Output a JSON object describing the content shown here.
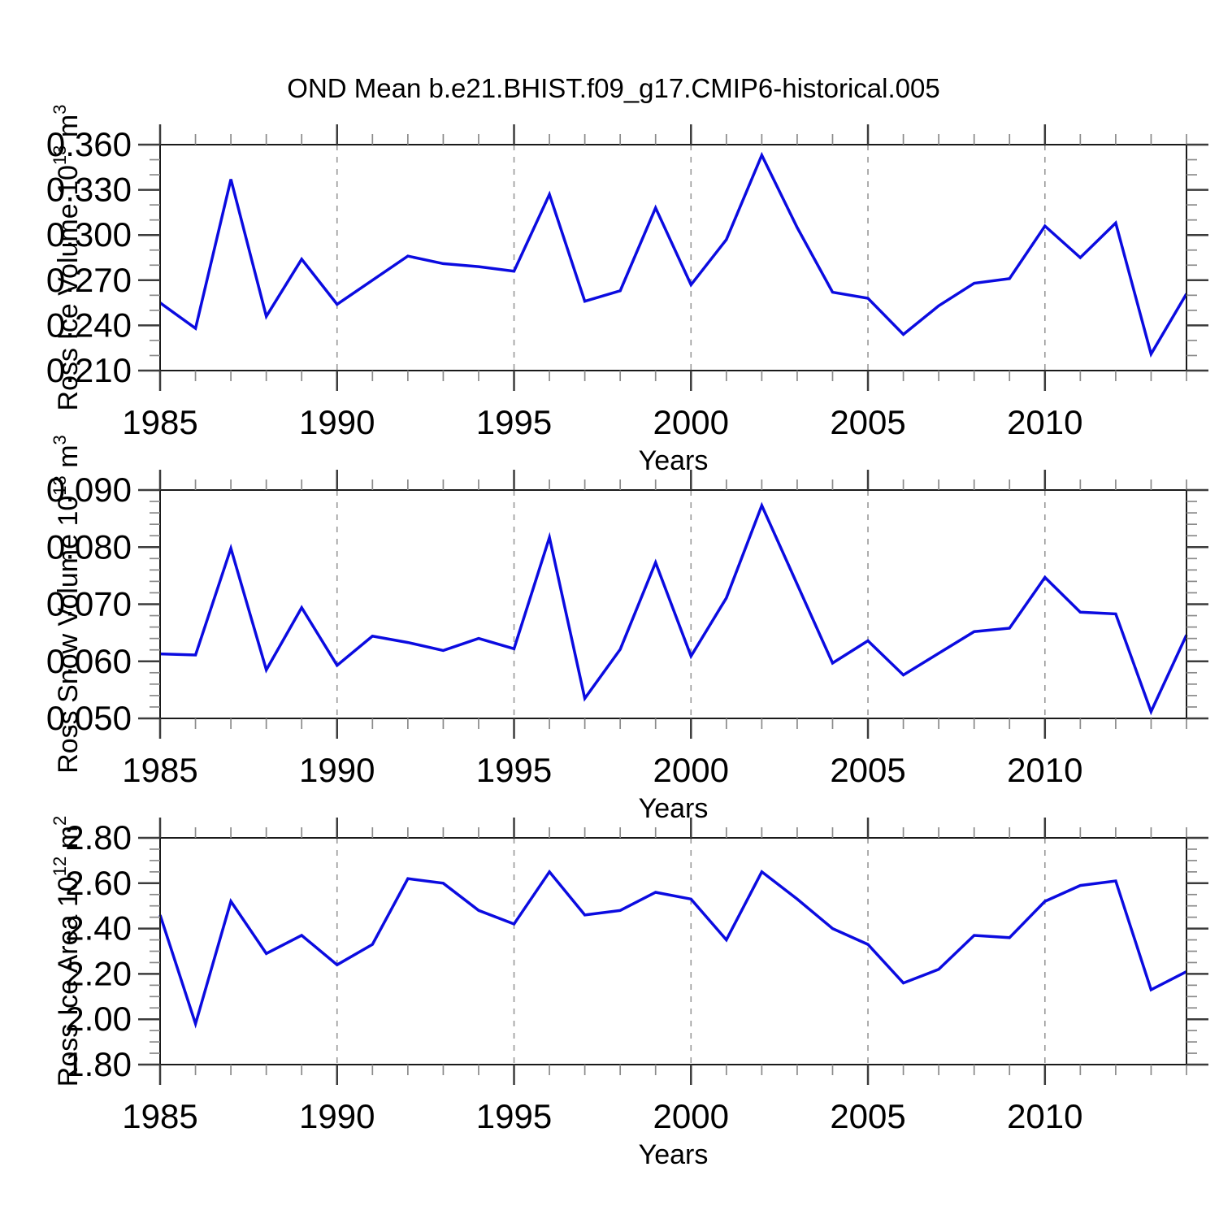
{
  "title": "OND Mean b.e21.BHIST.f09_g17.CMIP6-historical.005",
  "line_color": "#0b0be0",
  "years": [
    1985,
    1986,
    1987,
    1988,
    1989,
    1990,
    1991,
    1992,
    1993,
    1994,
    1995,
    1996,
    1997,
    1998,
    1999,
    2000,
    2001,
    2002,
    2003,
    2004,
    2005,
    2006,
    2007,
    2008,
    2009,
    2010,
    2011,
    2012,
    2013,
    2014
  ],
  "x_major_ticks": [
    1985,
    1990,
    1995,
    2000,
    2005,
    2010
  ],
  "grid_years": [
    1990,
    1995,
    2000,
    2005,
    2010
  ],
  "chart_data": [
    {
      "type": "line",
      "name": "ross-ice-volume",
      "ylabel": "Ross Ice Volume 10^13^ m^3^",
      "xlabel": "Years",
      "xlim": [
        1985,
        2014
      ],
      "ylim": [
        0.21,
        0.36
      ],
      "ytick_values": [
        0.21,
        0.24,
        0.27,
        0.3,
        0.33,
        0.36
      ],
      "ytick_labels": [
        "0.210",
        "0.240",
        "0.270",
        "0.300",
        "0.330",
        "0.360"
      ],
      "y_minor_step": 0.01,
      "grid": "vertical-dashed",
      "values": [
        0.255,
        0.238,
        0.337,
        0.246,
        0.284,
        0.254,
        0.27,
        0.286,
        0.281,
        0.279,
        0.276,
        0.327,
        0.256,
        0.263,
        0.318,
        0.267,
        0.297,
        0.353,
        0.305,
        0.262,
        0.258,
        0.234,
        0.253,
        0.268,
        0.271,
        0.306,
        0.285,
        0.308,
        0.221,
        0.261
      ]
    },
    {
      "type": "line",
      "name": "ross-snow-volume",
      "ylabel": "Ross Snow Volume 10^13^ m^3^",
      "xlabel": "Years",
      "xlim": [
        1985,
        2014
      ],
      "ylim": [
        0.05,
        0.09
      ],
      "ytick_values": [
        0.05,
        0.06,
        0.07,
        0.08,
        0.09
      ],
      "ytick_labels": [
        "0.050",
        "0.060",
        "0.070",
        "0.080",
        "0.090"
      ],
      "y_minor_step": 0.002,
      "grid": "vertical-dashed",
      "values": [
        0.0613,
        0.0611,
        0.0798,
        0.0585,
        0.0694,
        0.0593,
        0.0644,
        0.0633,
        0.0619,
        0.064,
        0.0622,
        0.0817,
        0.0535,
        0.0621,
        0.0773,
        0.0609,
        0.0711,
        0.0873,
        0.0735,
        0.0597,
        0.0636,
        0.0576,
        0.0614,
        0.0652,
        0.0658,
        0.0747,
        0.0686,
        0.0683,
        0.0512,
        0.0646
      ]
    },
    {
      "type": "line",
      "name": "ross-ice-area",
      "ylabel": "Ross Ice Area 10^12^ m^2^",
      "xlabel": "Years",
      "xlim": [
        1985,
        2014
      ],
      "ylim": [
        1.8,
        2.8
      ],
      "ytick_values": [
        1.8,
        2.0,
        2.2,
        2.4,
        2.6,
        2.8
      ],
      "ytick_labels": [
        "1.80",
        "2.00",
        "2.20",
        "2.40",
        "2.60",
        "2.80"
      ],
      "y_minor_step": 0.05,
      "grid": "vertical-dashed",
      "values": [
        2.46,
        1.98,
        2.52,
        2.29,
        2.37,
        2.24,
        2.33,
        2.62,
        2.6,
        2.48,
        2.42,
        2.65,
        2.46,
        2.48,
        2.56,
        2.53,
        2.35,
        2.65,
        2.53,
        2.4,
        2.33,
        2.16,
        2.22,
        2.37,
        2.36,
        2.52,
        2.59,
        2.61,
        2.13,
        2.21
      ]
    }
  ]
}
